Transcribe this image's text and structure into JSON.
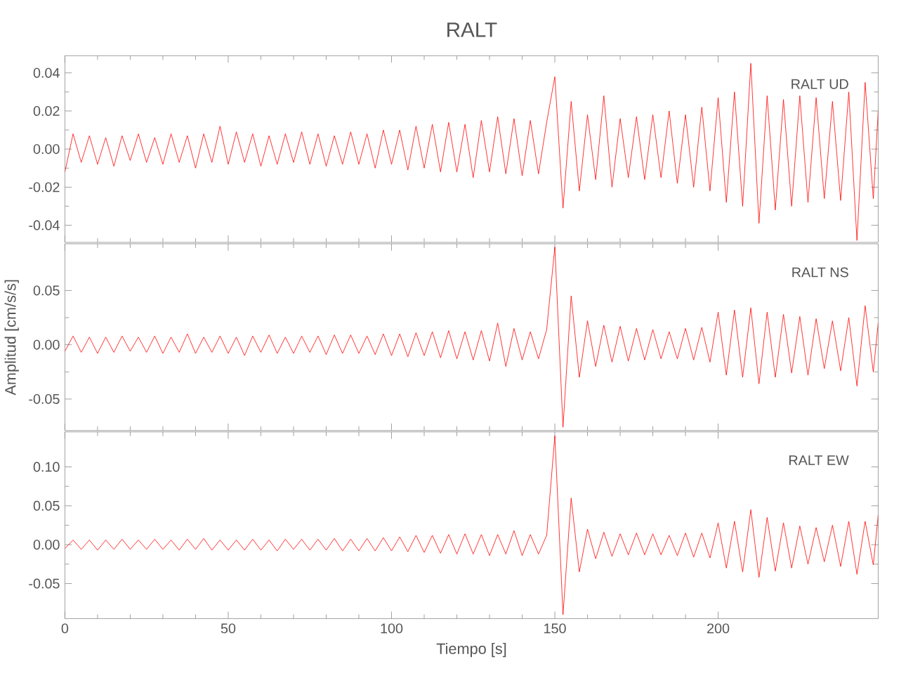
{
  "chart_data": [
    {
      "type": "line",
      "title": "RALT",
      "annotations": [
        "RALT   UD"
      ],
      "color": "#ff0000",
      "tick_labels": "y",
      "x": [
        0,
        2.5,
        5,
        7.5,
        10,
        12.5,
        15,
        17.5,
        20,
        22.5,
        25,
        27.5,
        30,
        32.5,
        35,
        37.5,
        40,
        42.5,
        45,
        47.5,
        50,
        52.5,
        55,
        57.5,
        60,
        62.5,
        65,
        67.5,
        70,
        72.5,
        75,
        77.5,
        80,
        82.5,
        85,
        87.5,
        90,
        92.5,
        95,
        97.5,
        100,
        102.5,
        105,
        107.5,
        110,
        112.5,
        115,
        117.5,
        120,
        122.5,
        125,
        127.5,
        130,
        132.5,
        135,
        137.5,
        140,
        142.5,
        145,
        147.5,
        150,
        152.5,
        155,
        157.5,
        160,
        162.5,
        165,
        167.5,
        170,
        172.5,
        175,
        177.5,
        180,
        182.5,
        185,
        187.5,
        190,
        192.5,
        195,
        197.5,
        200,
        202.5,
        205,
        207.5,
        210,
        212.5,
        215,
        217.5,
        220,
        222.5,
        225,
        227.5,
        230,
        232.5,
        235,
        237.5,
        240,
        242.5,
        245,
        247.5,
        249
      ],
      "values": [
        -0.012,
        0.008,
        -0.007,
        0.007,
        -0.008,
        0.006,
        -0.009,
        0.007,
        -0.006,
        0.008,
        -0.007,
        0.006,
        -0.008,
        0.008,
        -0.007,
        0.007,
        -0.01,
        0.008,
        -0.007,
        0.012,
        -0.008,
        0.009,
        -0.007,
        0.008,
        -0.009,
        0.007,
        -0.008,
        0.008,
        -0.007,
        0.009,
        -0.008,
        0.008,
        -0.009,
        0.007,
        -0.008,
        0.009,
        -0.008,
        0.008,
        -0.01,
        0.01,
        -0.008,
        0.01,
        -0.011,
        0.012,
        -0.01,
        0.013,
        -0.012,
        0.014,
        -0.012,
        0.013,
        -0.015,
        0.015,
        -0.012,
        0.017,
        -0.013,
        0.016,
        -0.014,
        0.015,
        -0.013,
        0.014,
        0.038,
        -0.031,
        0.025,
        -0.022,
        0.018,
        -0.016,
        0.028,
        -0.02,
        0.016,
        -0.015,
        0.017,
        -0.016,
        0.018,
        -0.015,
        0.02,
        -0.018,
        0.018,
        -0.02,
        0.022,
        -0.022,
        0.027,
        -0.028,
        0.03,
        -0.03,
        0.045,
        -0.039,
        0.028,
        -0.032,
        0.026,
        -0.03,
        0.028,
        -0.028,
        0.027,
        -0.026,
        0.025,
        -0.027,
        0.03,
        -0.048,
        0.035,
        -0.026,
        0.02
      ],
      "xlim": [
        0,
        249
      ],
      "xticks": [
        0,
        50,
        100,
        150,
        200
      ],
      "ylim": [
        -0.049,
        0.049
      ],
      "yticks": [
        {
          "value": -0.04,
          "label": "-0.04"
        },
        {
          "value": -0.02,
          "label": "-0.02"
        },
        {
          "value": 0,
          "label": "0.00"
        },
        {
          "value": 0.02,
          "label": "0.02"
        },
        {
          "value": 0.04,
          "label": "0.04"
        }
      ]
    },
    {
      "type": "line",
      "ylabel": "Amplitud  [cm/s/s]",
      "annotations": [
        "RALT   NS"
      ],
      "color": "#ff0000",
      "tick_labels": "y",
      "x": [
        0,
        2.5,
        5,
        7.5,
        10,
        12.5,
        15,
        17.5,
        20,
        22.5,
        25,
        27.5,
        30,
        32.5,
        35,
        37.5,
        40,
        42.5,
        45,
        47.5,
        50,
        52.5,
        55,
        57.5,
        60,
        62.5,
        65,
        67.5,
        70,
        72.5,
        75,
        77.5,
        80,
        82.5,
        85,
        87.5,
        90,
        92.5,
        95,
        97.5,
        100,
        102.5,
        105,
        107.5,
        110,
        112.5,
        115,
        117.5,
        120,
        122.5,
        125,
        127.5,
        130,
        132.5,
        135,
        137.5,
        140,
        142.5,
        145,
        147.5,
        150,
        152.5,
        155,
        157.5,
        160,
        162.5,
        165,
        167.5,
        170,
        172.5,
        175,
        177.5,
        180,
        182.5,
        185,
        187.5,
        190,
        192.5,
        195,
        197.5,
        200,
        202.5,
        205,
        207.5,
        210,
        212.5,
        215,
        217.5,
        220,
        222.5,
        225,
        227.5,
        230,
        232.5,
        235,
        237.5,
        240,
        242.5,
        245,
        247.5,
        249
      ],
      "values": [
        -0.006,
        0.008,
        -0.007,
        0.007,
        -0.008,
        0.007,
        -0.007,
        0.008,
        -0.006,
        0.007,
        -0.007,
        0.008,
        -0.008,
        0.007,
        -0.007,
        0.01,
        -0.008,
        0.007,
        -0.007,
        0.008,
        -0.008,
        0.007,
        -0.01,
        0.008,
        -0.007,
        0.009,
        -0.008,
        0.007,
        -0.008,
        0.008,
        -0.007,
        0.008,
        -0.009,
        0.009,
        -0.008,
        0.009,
        -0.008,
        0.008,
        -0.009,
        0.01,
        -0.01,
        0.01,
        -0.011,
        0.011,
        -0.01,
        0.012,
        -0.012,
        0.013,
        -0.013,
        0.012,
        -0.014,
        0.013,
        -0.015,
        0.02,
        -0.02,
        0.015,
        -0.014,
        0.012,
        -0.013,
        0.014,
        0.09,
        -0.076,
        0.045,
        -0.03,
        0.022,
        -0.02,
        0.018,
        -0.016,
        0.017,
        -0.015,
        0.015,
        -0.014,
        0.014,
        -0.013,
        0.012,
        -0.013,
        0.015,
        -0.014,
        0.016,
        -0.016,
        0.03,
        -0.028,
        0.032,
        -0.03,
        0.034,
        -0.036,
        0.03,
        -0.03,
        0.028,
        -0.026,
        0.026,
        -0.028,
        0.024,
        -0.022,
        0.022,
        -0.024,
        0.025,
        -0.038,
        0.036,
        -0.025,
        0.02
      ],
      "xlim": [
        0,
        249
      ],
      "xticks": [
        0,
        50,
        100,
        150,
        200
      ],
      "ylim": [
        -0.079,
        0.093
      ],
      "yticks": [
        {
          "value": -0.05,
          "label": "-0.05"
        },
        {
          "value": 0,
          "label": "0.00"
        },
        {
          "value": 0.05,
          "label": "0.05"
        }
      ]
    },
    {
      "type": "line",
      "xlabel": "Tiempo  [s]",
      "annotations": [
        "RALT   EW"
      ],
      "color": "#ff0000",
      "x": [
        0,
        2.5,
        5,
        7.5,
        10,
        12.5,
        15,
        17.5,
        20,
        22.5,
        25,
        27.5,
        30,
        32.5,
        35,
        37.5,
        40,
        42.5,
        45,
        47.5,
        50,
        52.5,
        55,
        57.5,
        60,
        62.5,
        65,
        67.5,
        70,
        72.5,
        75,
        77.5,
        80,
        82.5,
        85,
        87.5,
        90,
        92.5,
        95,
        97.5,
        100,
        102.5,
        105,
        107.5,
        110,
        112.5,
        115,
        117.5,
        120,
        122.5,
        125,
        127.5,
        130,
        132.5,
        135,
        137.5,
        140,
        142.5,
        145,
        147.5,
        150,
        152.5,
        155,
        157.5,
        160,
        162.5,
        165,
        167.5,
        170,
        172.5,
        175,
        177.5,
        180,
        182.5,
        185,
        187.5,
        190,
        192.5,
        195,
        197.5,
        200,
        202.5,
        205,
        207.5,
        210,
        212.5,
        215,
        217.5,
        220,
        222.5,
        225,
        227.5,
        230,
        232.5,
        235,
        237.5,
        240,
        242.5,
        245,
        247.5,
        249
      ],
      "values": [
        -0.005,
        0.006,
        -0.006,
        0.006,
        -0.007,
        0.006,
        -0.006,
        0.007,
        -0.006,
        0.006,
        -0.006,
        0.007,
        -0.006,
        0.006,
        -0.007,
        0.007,
        -0.006,
        0.008,
        -0.007,
        0.006,
        -0.007,
        0.006,
        -0.007,
        0.007,
        -0.007,
        0.006,
        -0.008,
        0.007,
        -0.006,
        0.007,
        -0.007,
        0.007,
        -0.007,
        0.008,
        -0.008,
        0.007,
        -0.008,
        0.008,
        -0.008,
        0.009,
        -0.008,
        0.01,
        -0.009,
        0.012,
        -0.01,
        0.012,
        -0.011,
        0.013,
        -0.012,
        0.014,
        -0.012,
        0.013,
        -0.014,
        0.013,
        -0.012,
        0.018,
        -0.014,
        0.013,
        -0.012,
        0.012,
        0.14,
        -0.09,
        0.06,
        -0.035,
        0.02,
        -0.018,
        0.016,
        -0.015,
        0.014,
        -0.013,
        0.015,
        -0.013,
        0.014,
        -0.013,
        0.012,
        -0.014,
        0.015,
        -0.016,
        0.015,
        -0.017,
        0.028,
        -0.03,
        0.03,
        -0.035,
        0.045,
        -0.042,
        0.035,
        -0.034,
        0.028,
        -0.03,
        0.024,
        -0.025,
        0.022,
        -0.022,
        0.025,
        -0.028,
        0.03,
        -0.038,
        0.03,
        -0.026,
        0.038
      ],
      "xlim": [
        0,
        249
      ],
      "xticks": [
        0,
        50,
        100,
        150,
        200
      ],
      "ylim": [
        -0.095,
        0.145
      ],
      "yticks": [
        {
          "value": -0.05,
          "label": "-0.05"
        },
        {
          "value": 0,
          "label": "0.00"
        },
        {
          "value": 0.05,
          "label": "0.05"
        },
        {
          "value": 0.1,
          "label": "0.10"
        }
      ]
    }
  ]
}
